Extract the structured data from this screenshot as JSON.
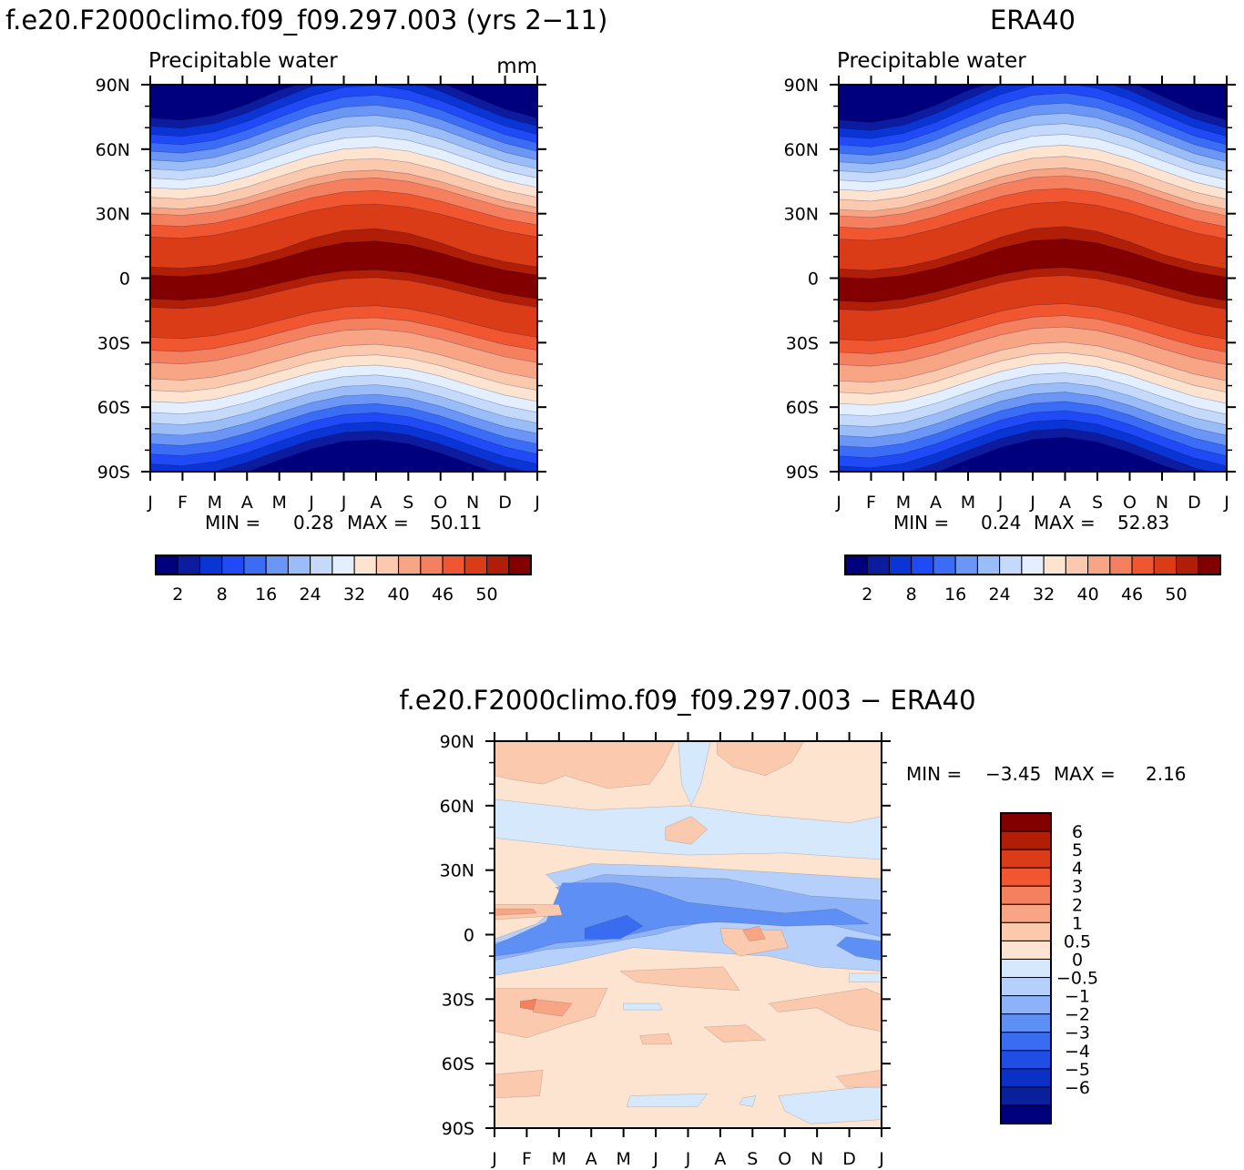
{
  "chart_data": [
    {
      "type": "heatmap",
      "title": "f.e20.F2000climo.f09_f09.297.003 (yrs 2−11)",
      "subtitle": "Precipitable water",
      "units": "mm",
      "xlabel": "",
      "ylabel": "",
      "x_ticks": [
        "J",
        "F",
        "M",
        "A",
        "M",
        "J",
        "J",
        "A",
        "S",
        "O",
        "N",
        "D",
        "J"
      ],
      "y_ticks": [
        "90N",
        "60N",
        "30N",
        "0",
        "30S",
        "60S",
        "90S"
      ],
      "ylim": [
        -90,
        90
      ],
      "stats": {
        "min_label": "MIN =",
        "min_value": "0.28",
        "max_label": "MAX =",
        "max_value": "50.11"
      },
      "colorbar": {
        "orientation": "horizontal",
        "colors": [
          "#00007f",
          "#0d1c9e",
          "#0a34d4",
          "#1f4af5",
          "#3b6cf5",
          "#6b96f5",
          "#9abdf7",
          "#c5dafa",
          "#e3efff",
          "#fde4d1",
          "#fbc9ae",
          "#f7a585",
          "#f4805f",
          "#f0562f",
          "#d93c17",
          "#b01e08",
          "#820000"
        ],
        "labels": [
          "2",
          "8",
          "16",
          "24",
          "32",
          "40",
          "46",
          "50"
        ]
      }
    },
    {
      "type": "heatmap",
      "title": "ERA40",
      "subtitle": "Precipitable water",
      "xlabel": "",
      "ylabel": "",
      "x_ticks": [
        "J",
        "F",
        "M",
        "A",
        "M",
        "J",
        "J",
        "A",
        "S",
        "O",
        "N",
        "D",
        "J"
      ],
      "y_ticks": [
        "90N",
        "60N",
        "30N",
        "0",
        "30S",
        "60S",
        "90S"
      ],
      "ylim": [
        -90,
        90
      ],
      "stats": {
        "min_label": "MIN =",
        "min_value": "0.24",
        "max_label": "MAX =",
        "max_value": "52.83"
      },
      "colorbar": {
        "orientation": "horizontal",
        "colors": [
          "#00007f",
          "#0d1c9e",
          "#0a34d4",
          "#1f4af5",
          "#3b6cf5",
          "#6b96f5",
          "#9abdf7",
          "#c5dafa",
          "#e3efff",
          "#fde4d1",
          "#fbc9ae",
          "#f7a585",
          "#f4805f",
          "#f0562f",
          "#d93c17",
          "#b01e08",
          "#820000"
        ],
        "labels": [
          "2",
          "8",
          "16",
          "24",
          "32",
          "40",
          "46",
          "50"
        ]
      }
    },
    {
      "type": "heatmap",
      "title": "f.e20.F2000climo.f09_f09.297.003 − ERA40",
      "xlabel": "",
      "ylabel": "",
      "x_ticks": [
        "J",
        "F",
        "M",
        "A",
        "M",
        "J",
        "J",
        "A",
        "S",
        "O",
        "N",
        "D",
        "J"
      ],
      "y_ticks": [
        "90N",
        "60N",
        "30N",
        "0",
        "30S",
        "60S",
        "90S"
      ],
      "ylim": [
        -90,
        90
      ],
      "stats": {
        "min_label": "MIN =",
        "min_value": "−3.45",
        "max_label": "MAX =",
        "max_value": "2.16"
      },
      "colorbar": {
        "orientation": "vertical",
        "colors_top_to_bottom": [
          "#820000",
          "#b01e08",
          "#d93c17",
          "#f0562f",
          "#f4805f",
          "#f7a585",
          "#fbc9ae",
          "#fde4d1",
          "#d6e8fc",
          "#b5d0fb",
          "#8eb2f7",
          "#5e8ff4",
          "#3a6cf2",
          "#1f4de6",
          "#0a30c6",
          "#0a1f9c",
          "#00007f"
        ],
        "labels_top_to_bottom": [
          "6",
          "5",
          "4",
          "3",
          "2",
          "1",
          "0.5",
          "0",
          "−0.5",
          "−1",
          "−2",
          "−3",
          "−4",
          "−5",
          "−6"
        ]
      }
    }
  ]
}
